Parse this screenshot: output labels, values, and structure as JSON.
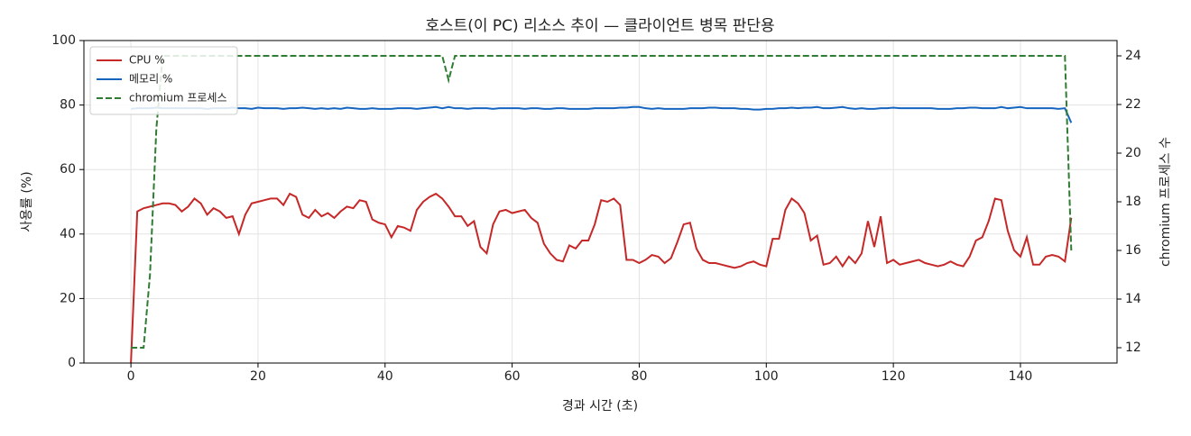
{
  "chart_data": {
    "type": "line",
    "title": "호스트(이 PC) 리소스 추이 — 클라이언트 병목 판단용",
    "x_label": "경과 시간 (초)",
    "y_label": "사용률 (%)",
    "y2_label": "chromium 프로세스 수",
    "x": [
      0,
      1,
      2,
      3,
      4,
      5,
      6,
      7,
      8,
      9,
      10,
      11,
      12,
      13,
      14,
      15,
      16,
      17,
      18,
      19,
      20,
      21,
      22,
      23,
      24,
      25,
      26,
      27,
      28,
      29,
      30,
      31,
      32,
      33,
      34,
      35,
      36,
      37,
      38,
      39,
      40,
      41,
      42,
      43,
      44,
      45,
      46,
      47,
      48,
      49,
      50,
      51,
      52,
      53,
      54,
      55,
      56,
      57,
      58,
      59,
      60,
      61,
      62,
      63,
      64,
      65,
      66,
      67,
      68,
      69,
      70,
      71,
      72,
      73,
      74,
      75,
      76,
      77,
      78,
      79,
      80,
      81,
      82,
      83,
      84,
      85,
      86,
      87,
      88,
      89,
      90,
      91,
      92,
      93,
      94,
      95,
      96,
      97,
      98,
      99,
      100,
      101,
      102,
      103,
      104,
      105,
      106,
      107,
      108,
      109,
      110,
      111,
      112,
      113,
      114,
      115,
      116,
      117,
      118,
      119,
      120,
      121,
      122,
      123,
      124,
      125,
      126,
      127,
      128,
      129,
      130,
      131,
      132,
      133,
      134,
      135,
      136,
      137,
      138,
      139,
      140,
      141,
      142,
      143,
      144,
      145,
      146,
      147,
      148
    ],
    "series": [
      {
        "name": "CPU %",
        "color": "#c62828",
        "linestyle": "solid",
        "axis": "y",
        "values": [
          0,
          47,
          48,
          48.5,
          49,
          49.5,
          49.5,
          49,
          47,
          48.5,
          51,
          49.5,
          46,
          48,
          47,
          45,
          45.5,
          40,
          46,
          49.5,
          50,
          50.5,
          51,
          51,
          49,
          52.5,
          51.5,
          46,
          45,
          47.5,
          45.5,
          46.5,
          45,
          47,
          48.5,
          48,
          50.5,
          50,
          44.5,
          43.5,
          43,
          39,
          42.5,
          42,
          41,
          47.5,
          50,
          51.5,
          52.5,
          51,
          48.5,
          45.5,
          45.5,
          42.5,
          44,
          36,
          34,
          43,
          47,
          47.5,
          46.5,
          47,
          47.5,
          45,
          43.5,
          37,
          34,
          32,
          31.5,
          36.5,
          35.5,
          38,
          38,
          43,
          50.5,
          50,
          51,
          49,
          32,
          32,
          31,
          32,
          33.5,
          33,
          31,
          32.5,
          37.5,
          43,
          43.5,
          35.5,
          32,
          31,
          31,
          30.5,
          30,
          29.5,
          30,
          31,
          31.5,
          30.5,
          30,
          38.5,
          38.5,
          47.5,
          51,
          49.5,
          46.5,
          38,
          39.5,
          30.5,
          31,
          33,
          30,
          33,
          31,
          34,
          44,
          36,
          45.5,
          31,
          32,
          30.5,
          31,
          31.5,
          32,
          31,
          30.5,
          30,
          30.5,
          31.5,
          30.5,
          30,
          33,
          38,
          39,
          44,
          51,
          50.5,
          41,
          35,
          33,
          39,
          30.5,
          30.5,
          33,
          33.5,
          33,
          31.5,
          45
        ]
      },
      {
        "name": "메모리 %",
        "color": "#1565c0",
        "linestyle": "solid",
        "axis": "y",
        "values": [
          78.8,
          79,
          79,
          79,
          79.2,
          79,
          79,
          79,
          79,
          79,
          79,
          79,
          78.8,
          79,
          79,
          79,
          79.2,
          79,
          79,
          78.8,
          79.2,
          79,
          79,
          79,
          78.8,
          79,
          79,
          79.2,
          79,
          78.8,
          79,
          78.8,
          79,
          78.8,
          79.2,
          79,
          78.8,
          78.8,
          79,
          78.8,
          78.8,
          78.8,
          79,
          79,
          79,
          78.8,
          79,
          79.2,
          79.4,
          79,
          79.4,
          79,
          79,
          78.8,
          79,
          79,
          79,
          78.8,
          79,
          79,
          79,
          79,
          78.8,
          79,
          79,
          78.8,
          78.8,
          79,
          79,
          78.8,
          78.8,
          78.8,
          78.8,
          79,
          79,
          79,
          79,
          79.2,
          79.2,
          79.4,
          79.4,
          79,
          78.8,
          79,
          78.8,
          78.8,
          78.8,
          78.8,
          79,
          79,
          79,
          79.2,
          79.2,
          79,
          79,
          79,
          78.8,
          78.8,
          78.6,
          78.6,
          78.8,
          78.8,
          79,
          79,
          79.2,
          79,
          79.2,
          79.2,
          79.4,
          79,
          79,
          79.2,
          79.4,
          79,
          78.8,
          79,
          78.8,
          78.8,
          79,
          79,
          79.2,
          79,
          79,
          79,
          79,
          79,
          79,
          78.8,
          78.8,
          78.8,
          79,
          79,
          79.2,
          79.2,
          79,
          79,
          79,
          79.4,
          79,
          79.2,
          79.4,
          79,
          79,
          79,
          79,
          79,
          78.8,
          79,
          74.5
        ]
      },
      {
        "name": "chromium 프로세스",
        "color": "#2e7d32",
        "linestyle": "dashed",
        "axis": "y2",
        "values": [
          12,
          12,
          12,
          15,
          21,
          24,
          24,
          24,
          24,
          24,
          24,
          24,
          24,
          24,
          24,
          24,
          24,
          24,
          24,
          24,
          24,
          24,
          24,
          24,
          24,
          24,
          24,
          24,
          24,
          24,
          24,
          24,
          24,
          24,
          24,
          24,
          24,
          24,
          24,
          24,
          24,
          24,
          24,
          24,
          24,
          24,
          24,
          24,
          24,
          24,
          23,
          24,
          24,
          24,
          24,
          24,
          24,
          24,
          24,
          24,
          24,
          24,
          24,
          24,
          24,
          24,
          24,
          24,
          24,
          24,
          24,
          24,
          24,
          24,
          24,
          24,
          24,
          24,
          24,
          24,
          24,
          24,
          24,
          24,
          24,
          24,
          24,
          24,
          24,
          24,
          24,
          24,
          24,
          24,
          24,
          24,
          24,
          24,
          24,
          24,
          24,
          24,
          24,
          24,
          24,
          24,
          24,
          24,
          24,
          24,
          24,
          24,
          24,
          24,
          24,
          24,
          24,
          24,
          24,
          24,
          24,
          24,
          24,
          24,
          24,
          24,
          24,
          24,
          24,
          24,
          24,
          24,
          24,
          24,
          24,
          24,
          24,
          24,
          24,
          24,
          24,
          24,
          24,
          24,
          24,
          24,
          24,
          24,
          16
        ]
      }
    ],
    "xlim": [
      -7.4,
      155.2
    ],
    "xticks": [
      0,
      20,
      40,
      60,
      80,
      100,
      120,
      140
    ],
    "ylim": [
      0,
      100
    ],
    "yticks": [
      0,
      20,
      40,
      60,
      80,
      100
    ],
    "y2lim": [
      11.37,
      24.63
    ],
    "y2ticks": [
      12,
      14,
      16,
      18,
      20,
      22,
      24
    ],
    "grid": true,
    "legend": "upper left"
  }
}
